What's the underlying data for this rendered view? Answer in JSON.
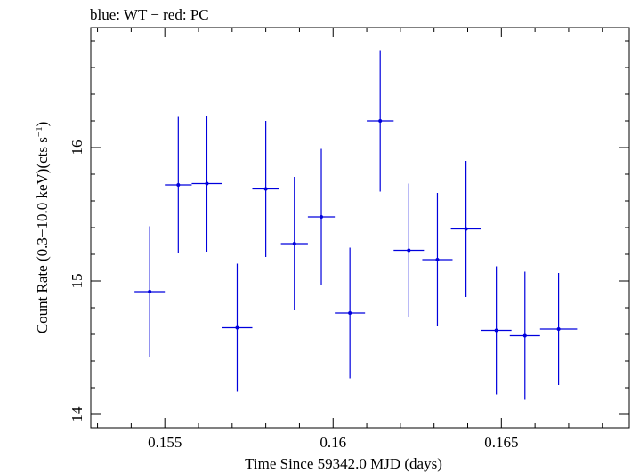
{
  "chart_data": {
    "type": "scatter",
    "title": "blue: WT − red: PC",
    "xlabel": "Time Since 59342.0 MJD (days)",
    "ylabel_main": "Count Rate (0.3−10.0 keV)(cts s",
    "ylabel_sup": "−1",
    "ylabel_close": ")",
    "xlim": [
      0.1528,
      0.1688
    ],
    "ylim": [
      13.9,
      16.9
    ],
    "xticks": [
      0.155,
      0.16,
      0.165
    ],
    "xtick_labels": [
      "0.155",
      "0.16",
      "0.165"
    ],
    "yticks": [
      14,
      15,
      16
    ],
    "ytick_labels": [
      "14",
      "15",
      "16"
    ],
    "grid": false,
    "series": [
      {
        "color": "#0000dd",
        "points": [
          {
            "x": 0.15455,
            "xerr": 0.00045,
            "y": 14.92,
            "yerr": 0.49
          },
          {
            "x": 0.1554,
            "xerr": 0.0004,
            "y": 15.72,
            "yerr": 0.51
          },
          {
            "x": 0.15625,
            "xerr": 0.00045,
            "y": 15.73,
            "yerr": 0.51
          },
          {
            "x": 0.15715,
            "xerr": 0.00045,
            "y": 14.65,
            "yerr": 0.48
          },
          {
            "x": 0.158,
            "xerr": 0.0004,
            "y": 15.69,
            "yerr": 0.51
          },
          {
            "x": 0.15885,
            "xerr": 0.0004,
            "y": 15.28,
            "yerr": 0.5
          },
          {
            "x": 0.15965,
            "xerr": 0.0004,
            "y": 15.48,
            "yerr": 0.51
          },
          {
            "x": 0.1605,
            "xerr": 0.00045,
            "y": 14.76,
            "yerr": 0.49
          },
          {
            "x": 0.1614,
            "xerr": 0.0004,
            "y": 16.2,
            "yerr": 0.53
          },
          {
            "x": 0.16225,
            "xerr": 0.00045,
            "y": 15.23,
            "yerr": 0.5
          },
          {
            "x": 0.1631,
            "xerr": 0.00045,
            "y": 15.16,
            "yerr": 0.5
          },
          {
            "x": 0.16395,
            "xerr": 0.00045,
            "y": 15.39,
            "yerr": 0.51
          },
          {
            "x": 0.16485,
            "xerr": 0.00045,
            "y": 14.63,
            "yerr": 0.48
          },
          {
            "x": 0.1657,
            "xerr": 0.00045,
            "y": 14.59,
            "yerr": 0.48
          },
          {
            "x": 0.1667,
            "xerr": 0.00055,
            "y": 14.64,
            "yerr": 0.42
          }
        ]
      }
    ]
  }
}
